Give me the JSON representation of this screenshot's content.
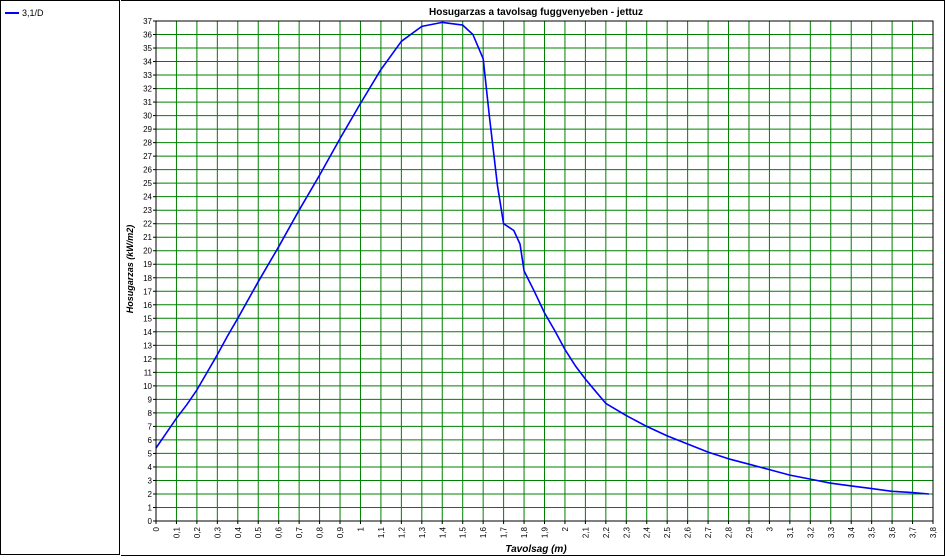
{
  "legend": {
    "items": [
      {
        "label": "3,1/D",
        "color": "#0000ff"
      }
    ]
  },
  "colors": {
    "grid": "#008000",
    "line": "#0000ff",
    "axis": "#000000"
  },
  "chart_data": {
    "type": "line",
    "title": "Hosugarzas a tavolsag fuggvenyeben - jettuz",
    "xlabel": "Tavolsag (m)",
    "ylabel": "Hosugarzas (kW/m2)",
    "xlim": [
      0,
      3.8
    ],
    "ylim": [
      0,
      37
    ],
    "grid": true,
    "legend_position": "left panel",
    "x_ticks": [
      "0",
      "0,1",
      "0,2",
      "0,3",
      "0,4",
      "0,5",
      "0,6",
      "0,7",
      "0,8",
      "0,9",
      "1",
      "1,1",
      "1,2",
      "1,3",
      "1,4",
      "1,5",
      "1,6",
      "1,7",
      "1,8",
      "1,9",
      "2",
      "2,1",
      "2,2",
      "2,3",
      "2,4",
      "2,5",
      "2,6",
      "2,7",
      "2,8",
      "2,9",
      "3",
      "3,1",
      "3,2",
      "3,3",
      "3,4",
      "3,5",
      "3,6",
      "3,7",
      "3,8"
    ],
    "y_ticks": [
      "0",
      "1",
      "2",
      "3",
      "4",
      "5",
      "6",
      "7",
      "8",
      "9",
      "10",
      "11",
      "12",
      "13",
      "14",
      "15",
      "16",
      "17",
      "18",
      "19",
      "20",
      "21",
      "22",
      "23",
      "24",
      "25",
      "26",
      "27",
      "28",
      "29",
      "30",
      "31",
      "32",
      "33",
      "34",
      "35",
      "36",
      "37"
    ],
    "series": [
      {
        "name": "3,1/D",
        "x": [
          0,
          0.05,
          0.1,
          0.15,
          0.2,
          0.25,
          0.3,
          0.35,
          0.4,
          0.5,
          0.6,
          0.7,
          0.8,
          0.9,
          1.0,
          1.1,
          1.2,
          1.3,
          1.4,
          1.5,
          1.55,
          1.6,
          1.63,
          1.67,
          1.7,
          1.75,
          1.78,
          1.8,
          1.85,
          1.9,
          1.95,
          2.0,
          2.05,
          2.1,
          2.15,
          2.2,
          2.3,
          2.4,
          2.5,
          2.6,
          2.7,
          2.8,
          2.9,
          3.0,
          3.1,
          3.2,
          3.3,
          3.4,
          3.5,
          3.6,
          3.7,
          3.78
        ],
        "y": [
          5.4,
          6.5,
          7.6,
          8.6,
          9.7,
          11.0,
          12.3,
          13.7,
          15.0,
          17.7,
          20.3,
          23.0,
          25.6,
          28.3,
          30.9,
          33.4,
          35.5,
          36.6,
          36.9,
          36.7,
          36.0,
          34.2,
          30.0,
          24.8,
          22.0,
          21.5,
          20.5,
          18.5,
          17.0,
          15.4,
          14.1,
          12.7,
          11.5,
          10.5,
          9.6,
          8.7,
          7.8,
          7.0,
          6.3,
          5.7,
          5.1,
          4.6,
          4.2,
          3.8,
          3.4,
          3.1,
          2.8,
          2.6,
          2.4,
          2.2,
          2.1,
          2.0
        ]
      }
    ]
  }
}
